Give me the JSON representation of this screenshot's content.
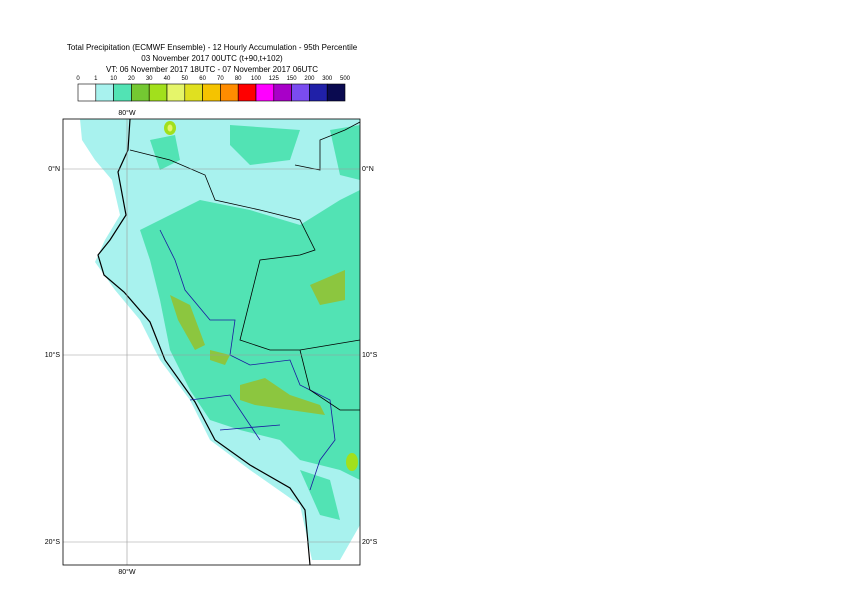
{
  "title": [
    "Total Precipitation (ECMWF Ensemble) - 12 Hourly Accumulation - 95th Percentile",
    "03 November 2017 00UTC (t+90,t+102)",
    "VT: 06 November 2017 18UTC - 07 November 2017 06UTC"
  ],
  "legend": {
    "labels": [
      "0",
      "1",
      "10",
      "20",
      "30",
      "40",
      "50",
      "60",
      "70",
      "80",
      "100",
      "125",
      "150",
      "200",
      "300",
      "500"
    ],
    "colors": [
      "#ffffff",
      "#a8f2ee",
      "#52e3b4",
      "#74c832",
      "#a2e01c",
      "#e5f56a",
      "#e0e020",
      "#f5c300",
      "#ff8c00",
      "#ff0000",
      "#ff00ff",
      "#a800c8",
      "#7a4cf0",
      "#2020a8",
      "#0a0a50"
    ]
  },
  "map": {
    "lon_label": "80°W",
    "lat_labels": [
      "0°N",
      "10°S",
      "20°S"
    ]
  }
}
